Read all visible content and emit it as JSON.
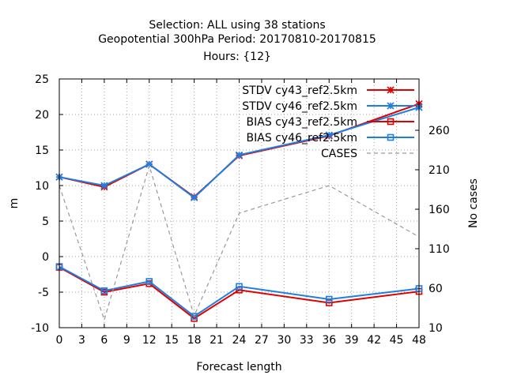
{
  "chart_data": {
    "type": "line",
    "title_lines": [
      "Selection: ALL using    38 stations",
      "Geopotential 300hPa   Period: 20170810-20170815",
      "Hours: {12}"
    ],
    "xlabel": "Forecast length",
    "ylabel": "m",
    "y2label": "No cases",
    "xlim": [
      0,
      48
    ],
    "ylim": [
      -10,
      25
    ],
    "y2lim": [
      10,
      325
    ],
    "x_ticks": [
      "0",
      "3",
      "6",
      "9",
      "12",
      "15",
      "18",
      "21",
      "24",
      "27",
      "30",
      "33",
      "36",
      "39",
      "42",
      "45",
      "48"
    ],
    "y_ticks": [
      "-10",
      "-5",
      "0",
      "5",
      "10",
      "15",
      "20",
      "25"
    ],
    "y2_ticks": [
      "10",
      "60",
      "110",
      "160",
      "210",
      "260"
    ],
    "grid": true,
    "legend_position": "top-right",
    "x": [
      0,
      6,
      12,
      18,
      24,
      36,
      48
    ],
    "series": [
      {
        "name": "STDV cy43_ref2.5km",
        "color": "#e00000",
        "marker": "star",
        "axis": "y",
        "values": [
          11.2,
          9.8,
          13.0,
          8.4,
          14.2,
          17.0,
          21.5
        ]
      },
      {
        "name": "STDV cy46_ref2.5km",
        "color": "#1e7fe0",
        "marker": "star",
        "axis": "y",
        "values": [
          11.2,
          10.0,
          13.0,
          8.3,
          14.3,
          17.1,
          21.0
        ]
      },
      {
        "name": "BIAS cy43_ref2.5km",
        "color": "#e00000",
        "marker": "square",
        "axis": "y",
        "values": [
          -1.5,
          -5.0,
          -3.8,
          -8.7,
          -4.7,
          -6.5,
          -4.9
        ]
      },
      {
        "name": "BIAS cy46_ref2.5km",
        "color": "#1e7fe0",
        "marker": "square",
        "axis": "y",
        "values": [
          -1.4,
          -4.8,
          -3.5,
          -8.4,
          -4.2,
          -6.0,
          -4.5
        ]
      },
      {
        "name": "CASES",
        "color": "#999999",
        "marker": "none",
        "dashed": true,
        "axis": "y2",
        "values": [
          190,
          20,
          215,
          25,
          155,
          190,
          125
        ]
      }
    ]
  }
}
